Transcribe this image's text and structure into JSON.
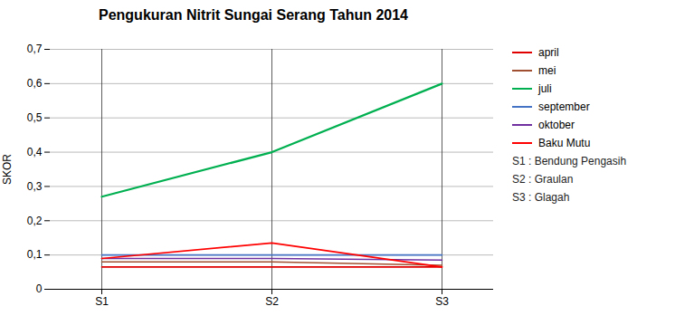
{
  "chart_data": {
    "type": "line",
    "title": "Pengukuran Nitrit Sungai Serang Tahun 2014",
    "y_label": "SKOR",
    "categories": [
      "S1",
      "S2",
      "S3"
    ],
    "series": [
      {
        "name": "april",
        "color": "#e00000",
        "values": [
          0.065,
          0.065,
          0.065
        ]
      },
      {
        "name": "mei",
        "color": "#a05030",
        "values": [
          0.08,
          0.08,
          0.07
        ]
      },
      {
        "name": "juli",
        "color": "#00b050",
        "values": [
          0.27,
          0.4,
          0.6
        ]
      },
      {
        "name": "september",
        "color": "#4472c4",
        "values": [
          0.1,
          0.1,
          0.1
        ]
      },
      {
        "name": "oktober",
        "color": "#7030a0",
        "values": [
          0.09,
          0.09,
          0.085
        ]
      },
      {
        "name": "Baku Mutu",
        "color": "#ff0000",
        "values": [
          0.09,
          0.135,
          0.065
        ]
      }
    ],
    "annotations": [
      "S1 : Bendung Pengasih",
      "S2 : Graulan",
      "S3 : Glagah"
    ],
    "ylim": [
      0,
      0.7
    ],
    "yticks": [
      0,
      {
        "value": 0.1,
        "label": "0,1"
      },
      {
        "value": 0.2,
        "label": "0,2"
      },
      {
        "value": 0.3,
        "label": "0,3"
      },
      {
        "value": 0.4,
        "label": "0,4"
      },
      {
        "value": 0.5,
        "label": "0,5"
      },
      {
        "value": 0.6,
        "label": "0,6"
      },
      {
        "value": 0.7,
        "label": "0,7"
      }
    ],
    "grid": true,
    "legend": "right"
  }
}
